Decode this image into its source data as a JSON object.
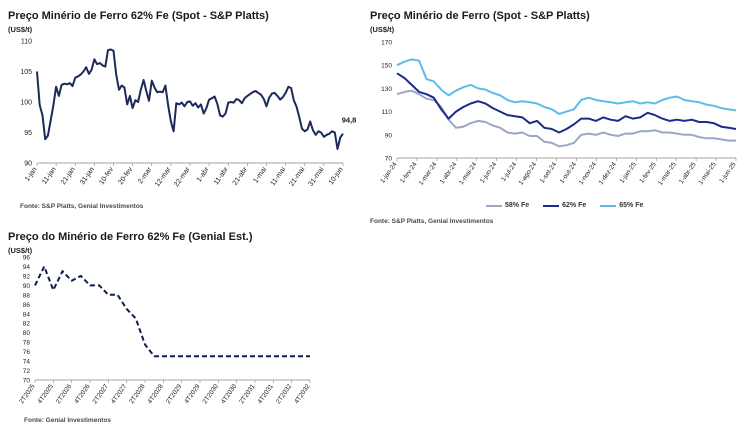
{
  "chart_data": [
    {
      "type": "line",
      "title": "Preço Minério de Ferro 62% Fe (Spot - S&P Platts)",
      "ylabel": "(US$/t)",
      "source": "Fonte: S&P Platts, Genial Investimentos",
      "ylim": [
        90,
        110
      ],
      "yticks": [
        90,
        95,
        100,
        105,
        110
      ],
      "x_tick_labels": [
        "1-jan",
        "11-jan",
        "21-jan",
        "31-jan",
        "10-fev",
        "20-fev",
        "2-mar",
        "12-mar",
        "22-mar",
        "1-abr",
        "11-abr",
        "21-abr",
        "1-mai",
        "11-mai",
        "21-mai",
        "31-mai",
        "10-jun"
      ],
      "last_value_label": "94,8",
      "color": "#1c2a5a",
      "series": [
        {
          "x": [
            0,
            1,
            2,
            3,
            4,
            5,
            6,
            7,
            8,
            9,
            10,
            11,
            12,
            13,
            14,
            15,
            16,
            17,
            18,
            19,
            20,
            21,
            22,
            23,
            24,
            25,
            26,
            27,
            28,
            29,
            30,
            31,
            32,
            33,
            34,
            35,
            36,
            37,
            38,
            39,
            40,
            41,
            42,
            43,
            44,
            45,
            46,
            47,
            48,
            49,
            50,
            51,
            52,
            53,
            54,
            55,
            56,
            57,
            58,
            59,
            60,
            61,
            62,
            63,
            64,
            65,
            66,
            67,
            68,
            69,
            70,
            71,
            72,
            73,
            74,
            75,
            76,
            77,
            78,
            79,
            80,
            81,
            82,
            83,
            84,
            85,
            86,
            87,
            88,
            89,
            90,
            91,
            92,
            93,
            94,
            95,
            96,
            97,
            98,
            99,
            100,
            101,
            102,
            103,
            104,
            105,
            106,
            107,
            108,
            109,
            110,
            111,
            112
          ],
          "values": [
            105.0,
            99.5,
            97.8,
            93.9,
            94.5,
            97.0,
            99.5,
            102.5,
            101.0,
            102.8,
            103.0,
            102.9,
            103.1,
            102.6,
            104.0,
            104.2,
            104.5,
            105.0,
            105.7,
            104.6,
            105.3,
            107.0,
            106.2,
            106.4,
            106.0,
            105.8,
            108.5,
            108.6,
            108.4,
            104.5,
            102.0,
            102.7,
            102.4,
            99.6,
            101.0,
            99.0,
            100.3,
            100.0,
            102.0,
            103.6,
            101.8,
            100.2,
            103.5,
            102.4,
            101.6,
            101.7,
            101.6,
            102.7,
            99.5,
            96.8,
            95.2,
            99.8,
            99.6,
            99.9,
            99.3,
            100.0,
            100.1,
            99.4,
            99.8,
            99.1,
            99.6,
            98.1,
            99.0,
            100.4,
            100.6,
            100.9,
            99.7,
            97.8,
            97.6,
            98.1,
            99.9,
            100.0,
            99.9,
            100.5,
            100.3,
            99.8,
            100.6,
            101.0,
            101.3,
            101.6,
            101.8,
            101.5,
            101.2,
            100.5,
            99.3,
            100.7,
            101.4,
            101.5,
            101.0,
            100.4,
            100.8,
            101.5,
            102.5,
            102.3,
            100.3,
            99.2,
            97.5,
            95.6,
            95.2,
            95.5,
            96.8,
            95.4,
            94.6,
            95.2,
            95.0,
            94.3,
            94.6,
            94.8,
            95.2,
            95.0,
            92.3,
            94.2,
            94.8
          ]
        }
      ]
    },
    {
      "type": "line",
      "title": "Preço Minério de Ferro (Spot - S&P Platts)",
      "ylabel": "(US$/t)",
      "source": "Fonte: S&P Platts, Genial Investimentos",
      "ylim": [
        70,
        170
      ],
      "yticks": [
        70,
        90,
        110,
        130,
        150,
        170
      ],
      "x_tick_labels": [
        "1-jan-24",
        "1-fev-24",
        "1-mar-24",
        "1-abr-24",
        "1-mai-24",
        "1-jun-24",
        "1-jul-24",
        "1-ago-24",
        "1-set-24",
        "1-out-24",
        "1-nov-24",
        "1-dez-24",
        "1-jan-25",
        "1-fev-25",
        "1-mar-25",
        "1-abr-25",
        "1-mai-25",
        "1-jun-25"
      ],
      "legend_position": "bottom",
      "series": [
        {
          "name": "58% Fe",
          "color": "#9aa7c7",
          "values": [
            125,
            127,
            128,
            125,
            121,
            120,
            114,
            103,
            96,
            97,
            100,
            102,
            101,
            98,
            96,
            92,
            91,
            92,
            89,
            89,
            84,
            83,
            80,
            81,
            83,
            90,
            91,
            90,
            92,
            90,
            89,
            91,
            91,
            93,
            93,
            94,
            92,
            92,
            91,
            90,
            90,
            88,
            87,
            87,
            86,
            85,
            85
          ]
        },
        {
          "name": "62% Fe",
          "color": "#1c2a8a",
          "values": [
            143,
            139,
            133,
            127,
            125,
            122,
            112,
            104,
            110,
            114,
            117,
            119,
            117,
            113,
            110,
            107,
            106,
            105,
            100,
            102,
            96,
            95,
            92,
            95,
            99,
            104,
            104,
            102,
            105,
            103,
            102,
            106,
            104,
            105,
            109,
            107,
            104,
            102,
            103,
            102,
            103,
            101,
            101,
            100,
            97,
            96,
            95
          ]
        },
        {
          "name": "65% Fe",
          "color": "#5bbce8",
          "values": [
            150,
            153,
            155,
            154,
            138,
            136,
            129,
            124,
            128,
            131,
            133,
            130,
            129,
            126,
            124,
            120,
            118,
            119,
            118,
            117,
            114,
            112,
            108,
            110,
            112,
            120,
            122,
            120,
            119,
            118,
            117,
            118,
            119,
            117,
            118,
            117,
            120,
            122,
            123,
            120,
            119,
            118,
            116,
            115,
            113,
            112,
            111
          ]
        }
      ]
    },
    {
      "type": "line",
      "title": "Preço do Minério de Ferro 62% Fe (Genial Est.)",
      "ylabel": "(US$/t)",
      "source": "Fonte: Genial Investimentos",
      "ylim": [
        70,
        96
      ],
      "yticks": [
        70,
        72,
        74,
        76,
        78,
        80,
        82,
        84,
        86,
        88,
        90,
        92,
        94,
        96
      ],
      "x_tick_labels": [
        "2T2025",
        "4T2025",
        "2T2026",
        "4T2026",
        "2T2027",
        "4T2027",
        "2T2028",
        "4T2028",
        "2T2029",
        "4T2029",
        "2T2030",
        "4T2030",
        "2T2031",
        "4T2031",
        "2T2032",
        "4T2032"
      ],
      "color": "#0b1f4d",
      "series": [
        {
          "x": [
            0,
            0.5,
            1,
            1.5,
            2,
            2.5,
            3,
            3.5,
            4,
            4.5,
            5,
            5.5,
            6,
            6.5,
            7,
            8,
            9,
            10,
            11,
            12,
            13,
            14,
            15
          ],
          "values": [
            90,
            94,
            89,
            93,
            91,
            92,
            90,
            90,
            88,
            88,
            85,
            83,
            77.5,
            75,
            75,
            75,
            75,
            75,
            75,
            75,
            75,
            75,
            75
          ]
        }
      ]
    }
  ]
}
